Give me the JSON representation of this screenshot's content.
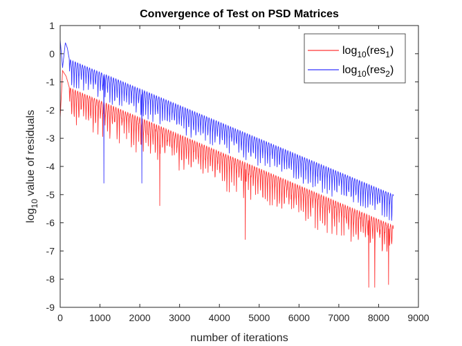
{
  "chart_data": {
    "type": "line",
    "title": "Convergence of Test on PSD Matrices",
    "xlabel": "number of iterations",
    "ylabel_main": "log",
    "ylabel_sub": "10",
    "ylabel_rest": " value of residuals",
    "xlim": [
      0,
      9000
    ],
    "ylim": [
      -9,
      1
    ],
    "xticks": [
      0,
      1000,
      2000,
      3000,
      4000,
      5000,
      6000,
      7000,
      8000,
      9000
    ],
    "yticks": [
      1,
      0,
      -1,
      -2,
      -3,
      -4,
      -5,
      -6,
      -7,
      -8,
      -9
    ],
    "grid": false,
    "legend_position": "top-right",
    "n_iterations": 8370,
    "oscillation_period_iterations": 60,
    "series": [
      {
        "name": "log10(res1)",
        "label_main": "log",
        "label_sub1": "10",
        "label_mid": "(res",
        "label_sub2": "1",
        "label_end": ")",
        "color": "#ff0000",
        "envelope_top": [
          [
            0,
            -2.3
          ],
          [
            60,
            -0.6
          ],
          [
            150,
            -0.8
          ],
          [
            230,
            -1.2
          ],
          [
            8370,
            -6.1
          ]
        ],
        "dip_depth_range": [
          0.8,
          2.4
        ]
      },
      {
        "name": "log10(res2)",
        "label_main": "log",
        "label_sub1": "10",
        "label_mid": "(res",
        "label_sub2": "2",
        "label_end": ")",
        "color": "#0000ff",
        "envelope_top": [
          [
            0,
            0.5
          ],
          [
            60,
            -0.5
          ],
          [
            130,
            0.4
          ],
          [
            180,
            0.2
          ],
          [
            230,
            -0.2
          ],
          [
            8370,
            -5.0
          ]
        ],
        "dip_depth_range": [
          0.9,
          1.8
        ]
      }
    ],
    "notable_dips": {
      "blue": [
        [
          200,
          -4.9
        ],
        [
          1100,
          -4.6
        ],
        [
          2050,
          -4.6
        ]
      ],
      "red": [
        [
          2500,
          -5.4
        ],
        [
          4650,
          -6.6
        ],
        [
          7750,
          -8.3
        ],
        [
          7900,
          -8.3
        ],
        [
          8250,
          -8.2
        ]
      ]
    }
  }
}
